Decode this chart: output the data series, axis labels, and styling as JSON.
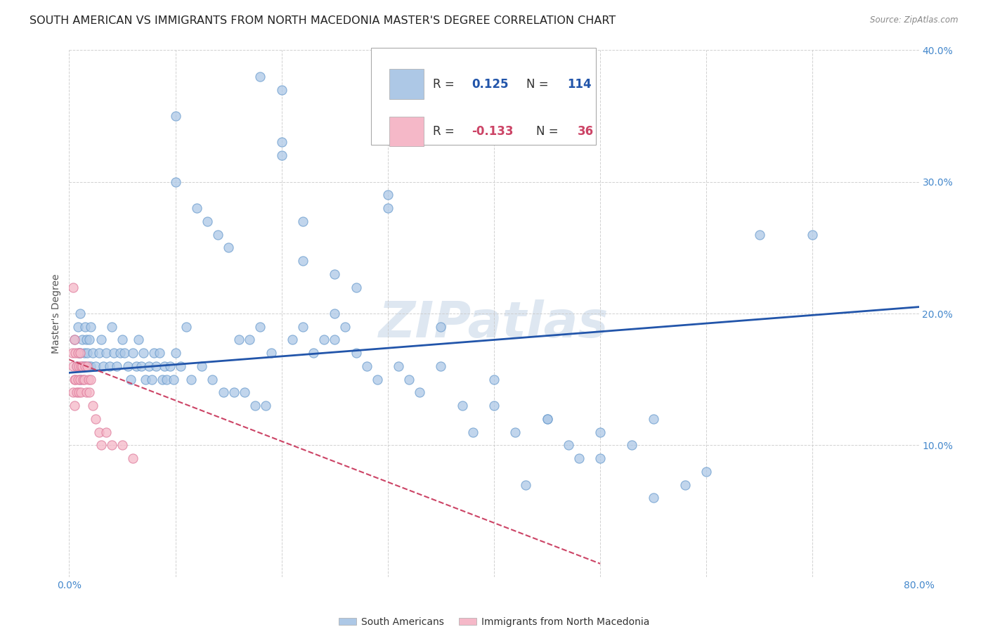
{
  "title": "SOUTH AMERICAN VS IMMIGRANTS FROM NORTH MACEDONIA MASTER'S DEGREE CORRELATION CHART",
  "source": "Source: ZipAtlas.com",
  "ylabel_label": "Master's Degree",
  "watermark": "ZIPatlas",
  "xlim": [
    0.0,
    0.8
  ],
  "ylim": [
    0.0,
    0.4
  ],
  "xtick_vals": [
    0.0,
    0.1,
    0.2,
    0.3,
    0.4,
    0.5,
    0.6,
    0.7,
    0.8
  ],
  "ytick_vals": [
    0.0,
    0.1,
    0.2,
    0.3,
    0.4
  ],
  "ytick_labels": [
    "",
    "10.0%",
    "20.0%",
    "30.0%",
    "40.0%"
  ],
  "blue_R": 0.125,
  "blue_N": 114,
  "pink_R": -0.133,
  "pink_N": 36,
  "blue_color": "#adc8e6",
  "blue_edge_color": "#6699cc",
  "blue_line_color": "#2255aa",
  "pink_color": "#f5b8c8",
  "pink_edge_color": "#dd7799",
  "pink_line_color": "#cc4466",
  "blue_scatter_x": [
    0.005,
    0.007,
    0.008,
    0.009,
    0.01,
    0.01,
    0.01,
    0.012,
    0.013,
    0.014,
    0.015,
    0.015,
    0.016,
    0.017,
    0.018,
    0.019,
    0.02,
    0.02,
    0.022,
    0.025,
    0.028,
    0.03,
    0.032,
    0.035,
    0.038,
    0.04,
    0.042,
    0.045,
    0.048,
    0.05,
    0.052,
    0.055,
    0.058,
    0.06,
    0.063,
    0.065,
    0.068,
    0.07,
    0.072,
    0.075,
    0.078,
    0.08,
    0.082,
    0.085,
    0.088,
    0.09,
    0.092,
    0.095,
    0.098,
    0.1,
    0.1,
    0.1,
    0.105,
    0.11,
    0.115,
    0.12,
    0.125,
    0.13,
    0.135,
    0.14,
    0.145,
    0.15,
    0.155,
    0.16,
    0.165,
    0.17,
    0.175,
    0.18,
    0.185,
    0.19,
    0.2,
    0.21,
    0.22,
    0.23,
    0.24,
    0.25,
    0.26,
    0.27,
    0.28,
    0.29,
    0.3,
    0.31,
    0.32,
    0.33,
    0.35,
    0.37,
    0.38,
    0.4,
    0.42,
    0.43,
    0.45,
    0.47,
    0.48,
    0.5,
    0.53,
    0.55,
    0.58,
    0.6,
    0.65,
    0.7,
    0.2,
    0.22,
    0.25,
    0.27,
    0.3,
    0.35,
    0.4,
    0.45,
    0.5,
    0.55,
    0.18,
    0.2,
    0.22,
    0.25
  ],
  "blue_scatter_y": [
    0.18,
    0.16,
    0.19,
    0.17,
    0.2,
    0.17,
    0.15,
    0.18,
    0.16,
    0.17,
    0.19,
    0.16,
    0.18,
    0.17,
    0.16,
    0.18,
    0.19,
    0.16,
    0.17,
    0.16,
    0.17,
    0.18,
    0.16,
    0.17,
    0.16,
    0.19,
    0.17,
    0.16,
    0.17,
    0.18,
    0.17,
    0.16,
    0.15,
    0.17,
    0.16,
    0.18,
    0.16,
    0.17,
    0.15,
    0.16,
    0.15,
    0.17,
    0.16,
    0.17,
    0.15,
    0.16,
    0.15,
    0.16,
    0.15,
    0.17,
    0.35,
    0.3,
    0.16,
    0.19,
    0.15,
    0.28,
    0.16,
    0.27,
    0.15,
    0.26,
    0.14,
    0.25,
    0.14,
    0.18,
    0.14,
    0.18,
    0.13,
    0.19,
    0.13,
    0.17,
    0.37,
    0.18,
    0.19,
    0.17,
    0.18,
    0.18,
    0.19,
    0.17,
    0.16,
    0.15,
    0.29,
    0.16,
    0.15,
    0.14,
    0.16,
    0.13,
    0.11,
    0.13,
    0.11,
    0.07,
    0.12,
    0.1,
    0.09,
    0.11,
    0.1,
    0.12,
    0.07,
    0.08,
    0.26,
    0.26,
    0.33,
    0.27,
    0.23,
    0.22,
    0.28,
    0.19,
    0.15,
    0.12,
    0.09,
    0.06,
    0.38,
    0.32,
    0.24,
    0.2
  ],
  "pink_scatter_x": [
    0.003,
    0.004,
    0.004,
    0.005,
    0.005,
    0.005,
    0.006,
    0.006,
    0.007,
    0.007,
    0.008,
    0.008,
    0.009,
    0.009,
    0.01,
    0.01,
    0.011,
    0.011,
    0.012,
    0.013,
    0.014,
    0.015,
    0.016,
    0.017,
    0.018,
    0.019,
    0.02,
    0.022,
    0.025,
    0.028,
    0.03,
    0.035,
    0.04,
    0.05,
    0.06,
    0.004
  ],
  "pink_scatter_y": [
    0.17,
    0.16,
    0.14,
    0.18,
    0.15,
    0.13,
    0.17,
    0.15,
    0.16,
    0.14,
    0.17,
    0.15,
    0.16,
    0.14,
    0.17,
    0.15,
    0.16,
    0.14,
    0.16,
    0.15,
    0.15,
    0.16,
    0.14,
    0.16,
    0.15,
    0.14,
    0.15,
    0.13,
    0.12,
    0.11,
    0.1,
    0.11,
    0.1,
    0.1,
    0.09,
    0.22
  ],
  "blue_line_x": [
    0.0,
    0.8
  ],
  "blue_line_y_start": 0.155,
  "blue_line_y_end": 0.205,
  "pink_line_x": [
    0.0,
    0.5
  ],
  "pink_line_y_start": 0.165,
  "pink_line_y_end": 0.01,
  "background_color": "#ffffff",
  "grid_color": "#cccccc",
  "title_fontsize": 11.5,
  "axis_label_fontsize": 10,
  "tick_fontsize": 10,
  "watermark_fontsize": 52,
  "watermark_color": "#c8d8e8",
  "watermark_alpha": 0.6,
  "legend_text_color": "#333333",
  "legend_value_blue": "#2255aa",
  "legend_value_pink": "#cc4466"
}
